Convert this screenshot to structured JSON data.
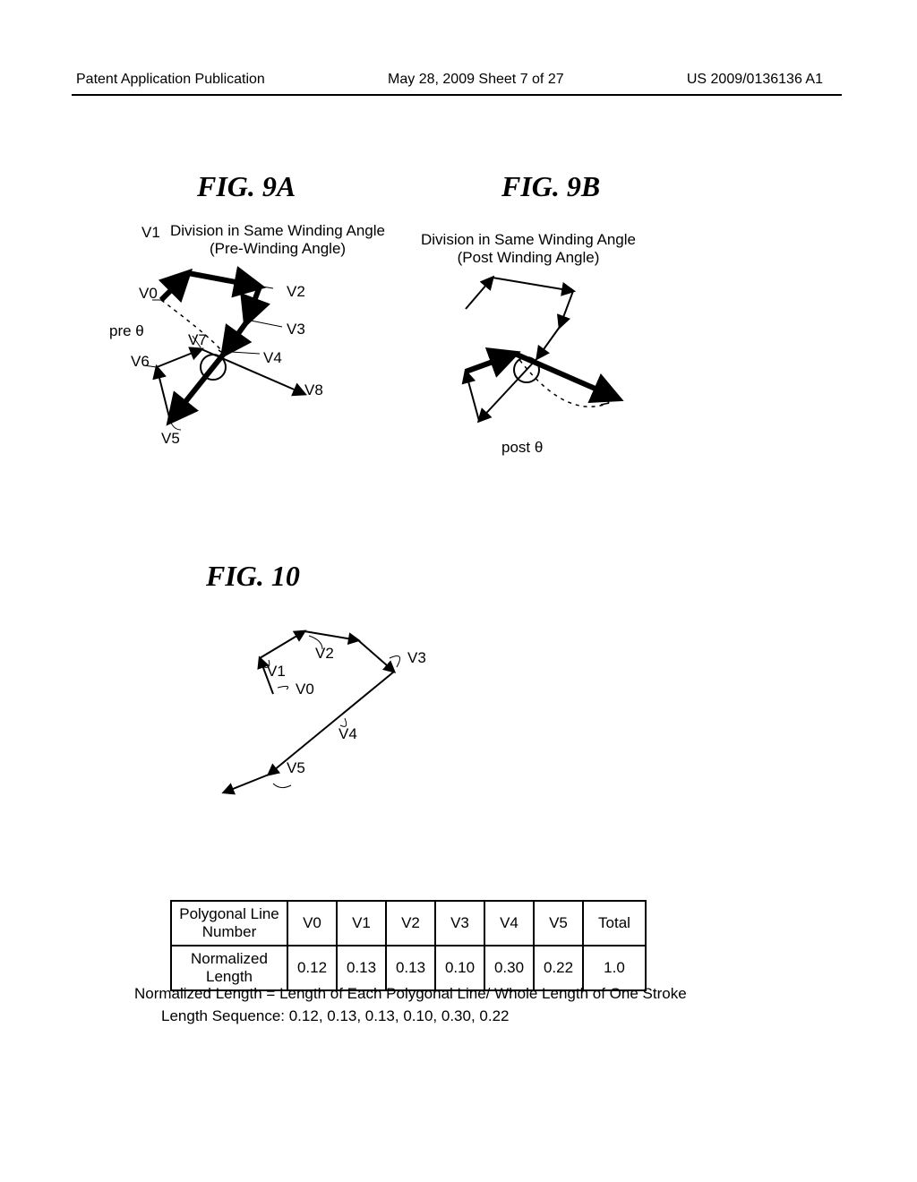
{
  "header": {
    "left": "Patent Application Publication",
    "center": "May 28, 2009  Sheet 7 of 27",
    "right": "US 2009/0136136 A1"
  },
  "fig9a": {
    "title": "FIG. 9A",
    "caption_line1": "Division in Same Winding Angle",
    "caption_line2": "(Pre-Winding Angle)",
    "labels": {
      "v0": "V0",
      "v1": "V1",
      "v2": "V2",
      "v3": "V3",
      "v4": "V4",
      "v5": "V5",
      "v6": "V6",
      "v7": "V7",
      "v8": "V8",
      "pre_theta": "pre θ"
    },
    "style": {
      "thick": 6,
      "thin": 2,
      "dash": "4,5",
      "color": "#000000",
      "arrow_size": 10
    }
  },
  "fig9b": {
    "title": "FIG. 9B",
    "caption_line1": "Division in Same Winding Angle",
    "caption_line2": "(Post Winding Angle)",
    "labels": {
      "post_theta": "post θ"
    },
    "style": {
      "thick": 6,
      "thin": 2,
      "dash": "4,5",
      "color": "#000000",
      "arrow_size": 10
    }
  },
  "fig10": {
    "title": "FIG. 10",
    "labels": {
      "v0": "V0",
      "v1": "V1",
      "v2": "V2",
      "v3": "V3",
      "v4": "V4",
      "v5": "V5"
    },
    "style": {
      "stroke": 2,
      "color": "#000000"
    }
  },
  "table": {
    "header_row": [
      "Polygonal Line\nNumber",
      "V0",
      "V1",
      "V2",
      "V3",
      "V4",
      "V5",
      "Total"
    ],
    "data_label": "Normalized\nLength",
    "data_row": [
      "0.12",
      "0.13",
      "0.13",
      "0.10",
      "0.30",
      "0.22",
      "1.0"
    ]
  },
  "footer": {
    "line1": "Normalized Length = Length of Each Polygonal Line/ Whole Length of One Stroke",
    "line2": "Length Sequence: 0.12, 0.13, 0.13, 0.10, 0.30, 0.22"
  }
}
